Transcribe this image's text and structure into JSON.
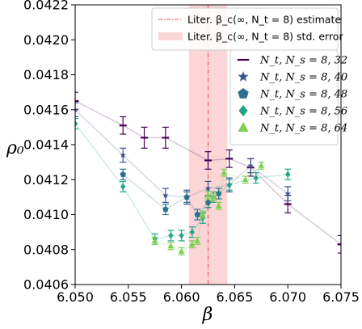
{
  "chart_data": {
    "type": "scatter",
    "xlabel": "β",
    "ylabel": "ρ₀",
    "xlim": [
      6.05,
      6.075
    ],
    "ylim": [
      0.0406,
      0.0422
    ],
    "x_ticks": [
      "6.050",
      "6.055",
      "6.060",
      "6.065",
      "6.070",
      "6.075"
    ],
    "y_ticks": [
      "0.0406",
      "0.0408",
      "0.0410",
      "0.0412",
      "0.0414",
      "0.0416",
      "0.0418",
      "0.0420",
      "0.0422"
    ],
    "grid": false,
    "legend_position": "top-right",
    "reference": {
      "beta_c": 6.0625,
      "band": [
        6.0607,
        6.0643
      ],
      "line_color": "#e8474d",
      "band_color": "#fcd5d6",
      "line_label": "Liter. β_c(∞, N_t = 8) estimate",
      "band_label": "Liter. β_c(∞, N_t = 8) std. error"
    },
    "series": [
      {
        "name": "N_t, N_s = 8, 32",
        "marker": "line",
        "color": "#440154",
        "points": [
          {
            "x": 6.05,
            "y": 0.04165,
            "e": 5e-05
          },
          {
            "x": 6.0545,
            "y": 0.04151,
            "e": 5e-05
          },
          {
            "x": 6.0565,
            "y": 0.04144,
            "e": 6e-05
          },
          {
            "x": 6.0585,
            "y": 0.04144,
            "e": 6e-05
          },
          {
            "x": 6.0625,
            "y": 0.04131,
            "e": 5e-05
          },
          {
            "x": 6.0645,
            "y": 0.04132,
            "e": 5e-05
          },
          {
            "x": 6.0665,
            "y": 0.04127,
            "e": 5e-05
          },
          {
            "x": 6.07,
            "y": 0.04106,
            "e": 5e-05
          },
          {
            "x": 6.075,
            "y": 0.04083,
            "e": 5e-05
          }
        ]
      },
      {
        "name": "N_t, N_s = 8, 40",
        "marker": "star",
        "color": "#3b528b",
        "points": [
          {
            "x": 6.05,
            "y": 0.0416,
            "e": 4e-05
          },
          {
            "x": 6.0545,
            "y": 0.04134,
            "e": 4e-05
          },
          {
            "x": 6.0585,
            "y": 0.04111,
            "e": 4e-05
          },
          {
            "x": 6.0605,
            "y": 0.0411,
            "e": 4e-05
          },
          {
            "x": 6.0625,
            "y": 0.04115,
            "e": 4e-05
          },
          {
            "x": 6.0645,
            "y": 0.04117,
            "e": 4e-05
          },
          {
            "x": 6.0665,
            "y": 0.04128,
            "e": 4e-05
          },
          {
            "x": 6.07,
            "y": 0.04112,
            "e": 4e-05
          }
        ]
      },
      {
        "name": "N_t, N_s = 8, 48",
        "marker": "pentagon",
        "color": "#2c728e",
        "points": [
          {
            "x": 6.0545,
            "y": 0.04123,
            "e": 3e-05
          },
          {
            "x": 6.0585,
            "y": 0.04103,
            "e": 3e-05
          },
          {
            "x": 6.0605,
            "y": 0.0411,
            "e": 3e-05
          },
          {
            "x": 6.0615,
            "y": 0.041,
            "e": 3e-05
          },
          {
            "x": 6.0625,
            "y": 0.04107,
            "e": 3e-05
          },
          {
            "x": 6.0635,
            "y": 0.04112,
            "e": 3e-05
          }
        ]
      },
      {
        "name": "N_t, N_s = 8, 56",
        "marker": "diamond",
        "color": "#21a585",
        "points": [
          {
            "x": 6.05,
            "y": 0.04152,
            "e": 3e-05
          },
          {
            "x": 6.0545,
            "y": 0.04116,
            "e": 3e-05
          },
          {
            "x": 6.0575,
            "y": 0.04086,
            "e": 3e-05
          },
          {
            "x": 6.059,
            "y": 0.04088,
            "e": 3e-05
          },
          {
            "x": 6.06,
            "y": 0.04088,
            "e": 3e-05
          },
          {
            "x": 6.061,
            "y": 0.0409,
            "e": 3e-05
          },
          {
            "x": 6.062,
            "y": 0.04098,
            "e": 3e-05
          },
          {
            "x": 6.063,
            "y": 0.0411,
            "e": 3e-05
          },
          {
            "x": 6.0645,
            "y": 0.04117,
            "e": 3e-05
          },
          {
            "x": 6.067,
            "y": 0.04121,
            "e": 3e-05
          },
          {
            "x": 6.07,
            "y": 0.04123,
            "e": 3e-05
          }
        ]
      },
      {
        "name": "N_t, N_s = 8, 64",
        "marker": "triangle",
        "color": "#7ad151",
        "points": [
          {
            "x": 6.0575,
            "y": 0.04085,
            "e": 2e-05
          },
          {
            "x": 6.059,
            "y": 0.04082,
            "e": 2e-05
          },
          {
            "x": 6.06,
            "y": 0.04079,
            "e": 2e-05
          },
          {
            "x": 6.061,
            "y": 0.04083,
            "e": 2e-05
          },
          {
            "x": 6.0615,
            "y": 0.04085,
            "e": 2e-05
          },
          {
            "x": 6.062,
            "y": 0.041,
            "e": 2e-05
          },
          {
            "x": 6.0625,
            "y": 0.04111,
            "e": 2e-05
          },
          {
            "x": 6.063,
            "y": 0.0411,
            "e": 2e-05
          },
          {
            "x": 6.0635,
            "y": 0.04105,
            "e": 2e-05
          },
          {
            "x": 6.064,
            "y": 0.04124,
            "e": 2e-05
          },
          {
            "x": 6.066,
            "y": 0.0412,
            "e": 2e-05
          },
          {
            "x": 6.0675,
            "y": 0.04128,
            "e": 2e-05
          }
        ]
      }
    ]
  }
}
